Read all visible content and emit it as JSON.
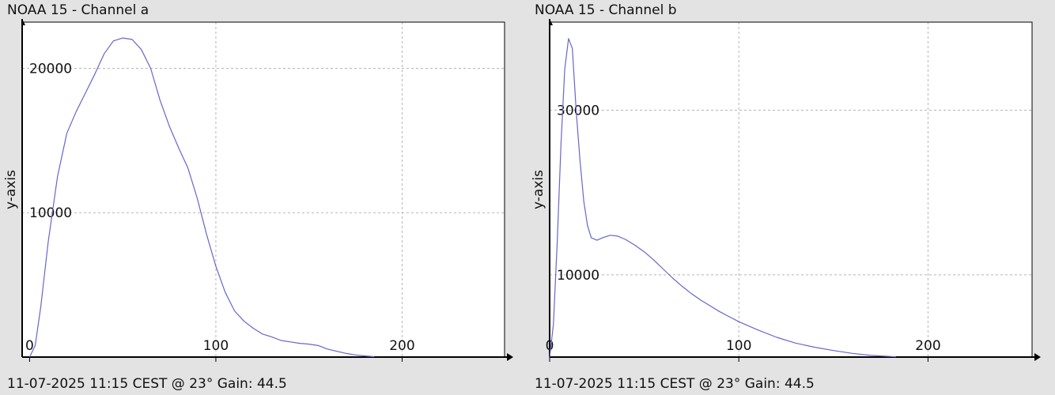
{
  "colors": {
    "background": "#e3e3e3",
    "plot_background": "#ffffff",
    "line": "#6666cc",
    "grid": "#b5b5b5",
    "axis": "#000000"
  },
  "chart_data": [
    {
      "type": "line",
      "title": "NOAA 15 - Channel a",
      "footer": "11-07-2025 11:15 CEST @ 23° Gain: 44.5",
      "xlabel": "",
      "ylabel": "y-axis",
      "xlim": [
        -4,
        255
      ],
      "ylim": [
        0,
        23200
      ],
      "x_ticks": [
        0,
        100,
        200
      ],
      "y_ticks": [
        10000,
        20000
      ],
      "grid": true,
      "series": [
        {
          "x": [
            0,
            3,
            6,
            10,
            15,
            20,
            25,
            30,
            35,
            40,
            45,
            50,
            55,
            60,
            65,
            70,
            75,
            80,
            85,
            90,
            95,
            100,
            105,
            110,
            115,
            120,
            125,
            130,
            135,
            140,
            145,
            150,
            155,
            160,
            165,
            170,
            175,
            180,
            185
          ],
          "y": [
            0,
            800,
            3500,
            8000,
            12500,
            15500,
            17000,
            18300,
            19600,
            21000,
            21900,
            22100,
            22000,
            21300,
            20000,
            17800,
            16000,
            14500,
            13100,
            11000,
            8500,
            6300,
            4500,
            3200,
            2500,
            2000,
            1600,
            1400,
            1150,
            1050,
            950,
            900,
            800,
            550,
            400,
            250,
            150,
            80,
            30
          ]
        }
      ]
    },
    {
      "type": "line",
      "title": "NOAA 15 - Channel b",
      "footer": "11-07-2025 11:15 CEST @ 23° Gain: 44.5",
      "xlabel": "",
      "ylabel": "y-axis",
      "xlim": [
        0,
        255
      ],
      "ylim": [
        0,
        40700
      ],
      "x_ticks": [
        0,
        100,
        200
      ],
      "y_ticks": [
        10000,
        30000
      ],
      "grid": true,
      "series": [
        {
          "x": [
            0,
            2,
            4,
            6,
            8,
            10,
            12,
            14,
            16,
            18,
            20,
            22,
            25,
            28,
            32,
            36,
            40,
            45,
            50,
            55,
            60,
            65,
            70,
            75,
            80,
            85,
            90,
            95,
            100,
            110,
            120,
            130,
            140,
            150,
            160,
            170,
            180,
            183
          ],
          "y": [
            0,
            4000,
            14000,
            26000,
            35000,
            38700,
            37500,
            30000,
            24000,
            19000,
            16000,
            14500,
            14200,
            14500,
            14800,
            14700,
            14300,
            13600,
            12800,
            11800,
            10700,
            9600,
            8600,
            7700,
            6900,
            6200,
            5500,
            4900,
            4300,
            3300,
            2400,
            1700,
            1200,
            800,
            450,
            200,
            80,
            30
          ]
        }
      ]
    }
  ]
}
